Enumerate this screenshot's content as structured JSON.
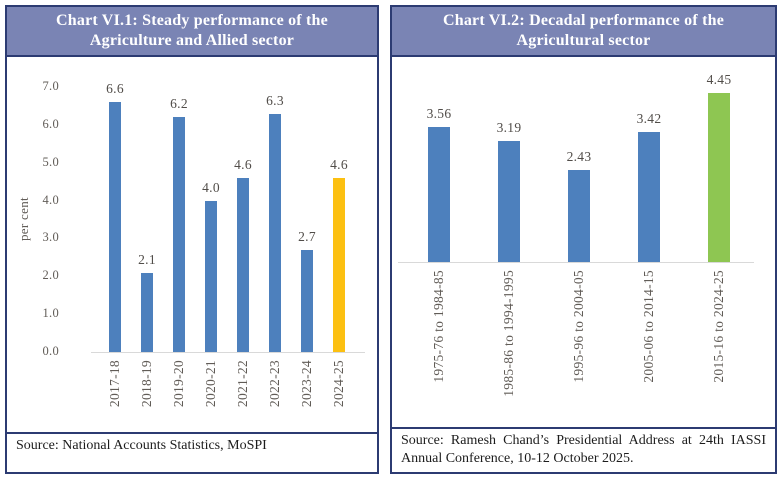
{
  "colors": {
    "header_bg": "#7a84b4",
    "panel_border": "#2c3b72",
    "bar_blue": "#4d80bd",
    "bar_yellow": "#fcc011",
    "bar_green": "#8ec652",
    "axis_text": "#615c57",
    "value_text": "#514d49",
    "axis_line": "#d9d9d9"
  },
  "panels": [
    {
      "title": "Chart VI.1: Steady performance of the Agriculture and Allied sector",
      "source": "Source: National Accounts Statistics, MoSPI"
    },
    {
      "title": "Chart VI.2: Decadal performance of the Agricultural sector",
      "source": "Source: Ramesh Chand’s Presidential Address at 24th IASSI Annual Conference, 10-12 October 2025."
    }
  ],
  "chart_data": [
    {
      "type": "bar",
      "title": "Chart VI.1: Steady performance of the Agriculture and Allied sector",
      "categories": [
        "2017-18",
        "2018-19",
        "2019-20",
        "2020-21",
        "2021-22",
        "2022-23",
        "2023-24",
        "2024-25"
      ],
      "values": [
        6.6,
        2.1,
        6.2,
        4.0,
        4.6,
        6.3,
        2.7,
        4.6
      ],
      "data_labels": [
        "6.6",
        "2.1",
        "6.2",
        "4.0",
        "4.6",
        "6.3",
        "2.7",
        "4.6"
      ],
      "bar_colors": [
        "#4d80bd",
        "#4d80bd",
        "#4d80bd",
        "#4d80bd",
        "#4d80bd",
        "#4d80bd",
        "#4d80bd",
        "#fcc011"
      ],
      "xlabel": "",
      "ylabel": "per cent",
      "ylim": [
        0,
        7
      ],
      "yticks": [
        0,
        1,
        2,
        3,
        4,
        5,
        6,
        7
      ],
      "ytick_labels": [
        "0.0",
        "1.0",
        "2.0",
        "3.0",
        "4.0",
        "5.0",
        "6.0",
        "7.0"
      ],
      "grid": false,
      "legend": "none"
    },
    {
      "type": "bar",
      "title": "Chart VI.2: Decadal performance of the Agricultural sector",
      "categories": [
        "1975-76 to 1984-85",
        "1985-86 to 1994-1995",
        "1995-96 to 2004-05",
        "2005-06 to 2014-15",
        "2015-16 to 2024-25"
      ],
      "values": [
        3.56,
        3.19,
        2.43,
        3.42,
        4.45
      ],
      "data_labels": [
        "3.56",
        "3.19",
        "2.43",
        "3.42",
        "4.45"
      ],
      "bar_colors": [
        "#4d80bd",
        "#4d80bd",
        "#4d80bd",
        "#4d80bd",
        "#8ec652"
      ],
      "xlabel": "",
      "ylabel": "",
      "ylim": [
        0,
        4.8
      ],
      "yticks": [],
      "ytick_labels": [],
      "grid": false,
      "legend": "none",
      "y_axis_visible": false
    }
  ]
}
